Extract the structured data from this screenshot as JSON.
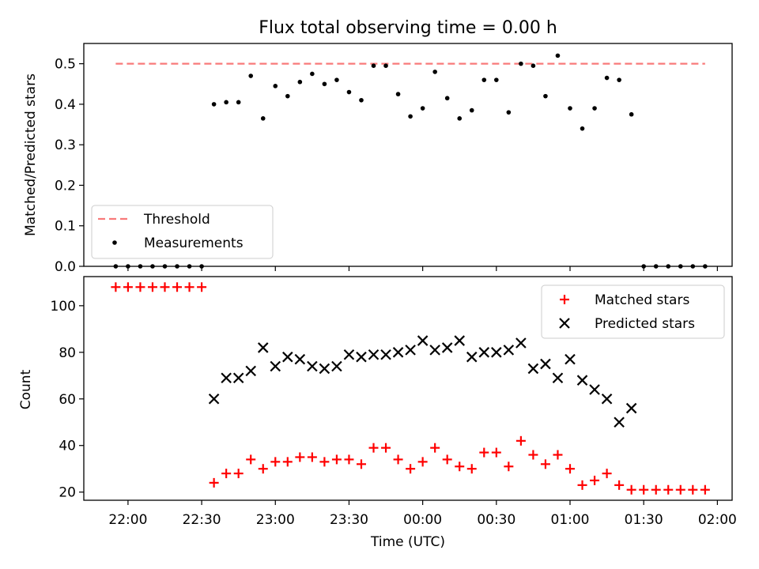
{
  "figure_title": "Flux total observing time = 0.00 h",
  "chart_data": [
    {
      "type": "scatter",
      "ylabel": "Matched/Predicted stars",
      "xlabel": "",
      "x_range_hours": [
        21.7,
        26.1
      ],
      "ylim": [
        0,
        0.55
      ],
      "yticks": [
        0.0,
        0.1,
        0.2,
        0.3,
        0.4,
        0.5
      ],
      "ytick_labels": [
        "0.0",
        "0.1",
        "0.2",
        "0.3",
        "0.4",
        "0.5"
      ],
      "legend_position": "lower-left",
      "threshold": {
        "name": "Threshold",
        "value": 0.5,
        "x_start": "21:55",
        "x_end": "01:55",
        "color": "#f87a7a"
      },
      "series": [
        {
          "name": "Measurements",
          "color": "#000000",
          "x": [
            "21:55",
            "22:00",
            "22:05",
            "22:10",
            "22:15",
            "22:20",
            "22:25",
            "22:30",
            "22:35",
            "22:40",
            "22:45",
            "22:50",
            "22:55",
            "23:00",
            "23:05",
            "23:10",
            "23:15",
            "23:20",
            "23:25",
            "23:30",
            "23:35",
            "23:40",
            "23:45",
            "23:50",
            "23:55",
            "00:00",
            "00:05",
            "00:10",
            "00:15",
            "00:20",
            "00:25",
            "00:30",
            "00:35",
            "00:40",
            "00:45",
            "00:50",
            "00:55",
            "01:00",
            "01:05",
            "01:10",
            "01:15",
            "01:20",
            "01:25",
            "01:30",
            "01:35",
            "01:40",
            "01:45",
            "01:50",
            "01:55"
          ],
          "y": [
            0,
            0,
            0,
            0,
            0,
            0,
            0,
            0,
            0.4,
            0.405,
            0.405,
            0.47,
            0.365,
            0.445,
            0.42,
            0.455,
            0.475,
            0.45,
            0.46,
            0.43,
            0.41,
            0.495,
            0.495,
            0.425,
            0.37,
            0.39,
            0.48,
            0.415,
            0.365,
            0.385,
            0.46,
            0.46,
            0.38,
            0.5,
            0.495,
            0.42,
            0.52,
            0.39,
            0.34,
            0.39,
            0.465,
            0.46,
            0.375,
            0,
            0,
            0,
            0,
            0,
            0
          ]
        }
      ]
    },
    {
      "type": "scatter",
      "xlabel": "Time (UTC)",
      "ylabel": "Count",
      "x_range_hours": [
        21.7,
        26.1
      ],
      "ylim": [
        16.5,
        112.5
      ],
      "yticks": [
        20,
        40,
        60,
        80,
        100
      ],
      "ytick_labels": [
        "20",
        "40",
        "60",
        "80",
        "100"
      ],
      "xtick_hours": [
        22,
        22.5,
        23,
        23.5,
        24,
        24.5,
        25,
        25.5,
        26
      ],
      "xtick_labels": [
        "22:00",
        "22:30",
        "23:00",
        "23:30",
        "00:00",
        "00:30",
        "01:00",
        "01:30",
        "02:00"
      ],
      "legend_position": "top-right",
      "series": [
        {
          "name": "Matched stars",
          "color": "#ff0000",
          "marker": "+",
          "x": [
            "21:55",
            "22:00",
            "22:05",
            "22:10",
            "22:15",
            "22:20",
            "22:25",
            "22:30",
            "22:35",
            "22:40",
            "22:45",
            "22:50",
            "22:55",
            "23:00",
            "23:05",
            "23:10",
            "23:15",
            "23:20",
            "23:25",
            "23:30",
            "23:35",
            "23:40",
            "23:45",
            "23:50",
            "23:55",
            "00:00",
            "00:05",
            "00:10",
            "00:15",
            "00:20",
            "00:25",
            "00:30",
            "00:35",
            "00:40",
            "00:45",
            "00:50",
            "00:55",
            "01:00",
            "01:05",
            "01:10",
            "01:15",
            "01:20",
            "01:25",
            "01:30",
            "01:35",
            "01:40",
            "01:45",
            "01:50",
            "01:55"
          ],
          "y": [
            108,
            108,
            108,
            108,
            108,
            108,
            108,
            108,
            24,
            28,
            28,
            34,
            30,
            33,
            33,
            35,
            35,
            33,
            34,
            34,
            32,
            39,
            39,
            34,
            30,
            33,
            39,
            34,
            31,
            30,
            37,
            37,
            31,
            42,
            36,
            32,
            36,
            30,
            23,
            25,
            28,
            23,
            21,
            21,
            21,
            21,
            21,
            21,
            21
          ]
        },
        {
          "name": "Predicted stars",
          "color": "#000000",
          "marker": "x",
          "x": [
            "22:35",
            "22:40",
            "22:45",
            "22:50",
            "22:55",
            "23:00",
            "23:05",
            "23:10",
            "23:15",
            "23:20",
            "23:25",
            "23:30",
            "23:35",
            "23:40",
            "23:45",
            "23:50",
            "23:55",
            "00:00",
            "00:05",
            "00:10",
            "00:15",
            "00:20",
            "00:25",
            "00:30",
            "00:35",
            "00:40",
            "00:45",
            "00:50",
            "00:55",
            "01:00",
            "01:05",
            "01:10",
            "01:15",
            "01:20",
            "01:25"
          ],
          "y": [
            60,
            69,
            69,
            72,
            82,
            74,
            78,
            77,
            74,
            73,
            74,
            79,
            78,
            79,
            79,
            80,
            81,
            85,
            81,
            82,
            85,
            78,
            80,
            80,
            81,
            84,
            73,
            75,
            69,
            77,
            68,
            64,
            60,
            50,
            56
          ]
        }
      ]
    }
  ]
}
